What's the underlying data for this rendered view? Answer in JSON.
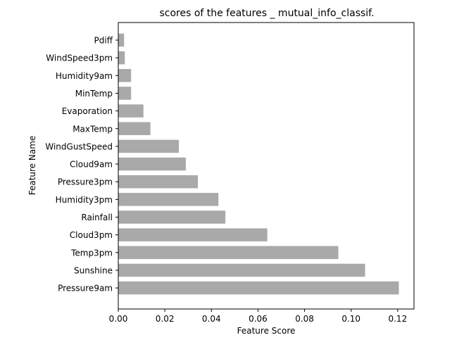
{
  "chart_data": {
    "type": "bar",
    "orientation": "horizontal",
    "title": "scores of the features _ mutual_info_classif.",
    "xlabel": "Feature Score",
    "ylabel": "Feature Name",
    "categories": [
      "Pdiff",
      "WindSpeed3pm",
      "Humidity9am",
      "MinTemp",
      "Evaporation",
      "MaxTemp",
      "WindGustSpeed",
      "Cloud9am",
      "Pressure3pm",
      "Humidity3pm",
      "Rainfall",
      "Cloud3pm",
      "Temp3pm",
      "Sunshine",
      "Pressure9am"
    ],
    "values": [
      0.0025,
      0.0028,
      0.0055,
      0.0055,
      0.0108,
      0.0138,
      0.026,
      0.029,
      0.0342,
      0.043,
      0.046,
      0.064,
      0.0945,
      0.106,
      0.1205
    ],
    "xlim": [
      0,
      0.127
    ],
    "xticks": [
      0.0,
      0.02,
      0.04,
      0.06,
      0.08,
      0.1,
      0.12
    ],
    "xtick_labels": [
      "0.00",
      "0.02",
      "0.04",
      "0.06",
      "0.08",
      "0.10",
      "0.12"
    ],
    "grid": false,
    "bar_color": "#a9a9a9"
  }
}
